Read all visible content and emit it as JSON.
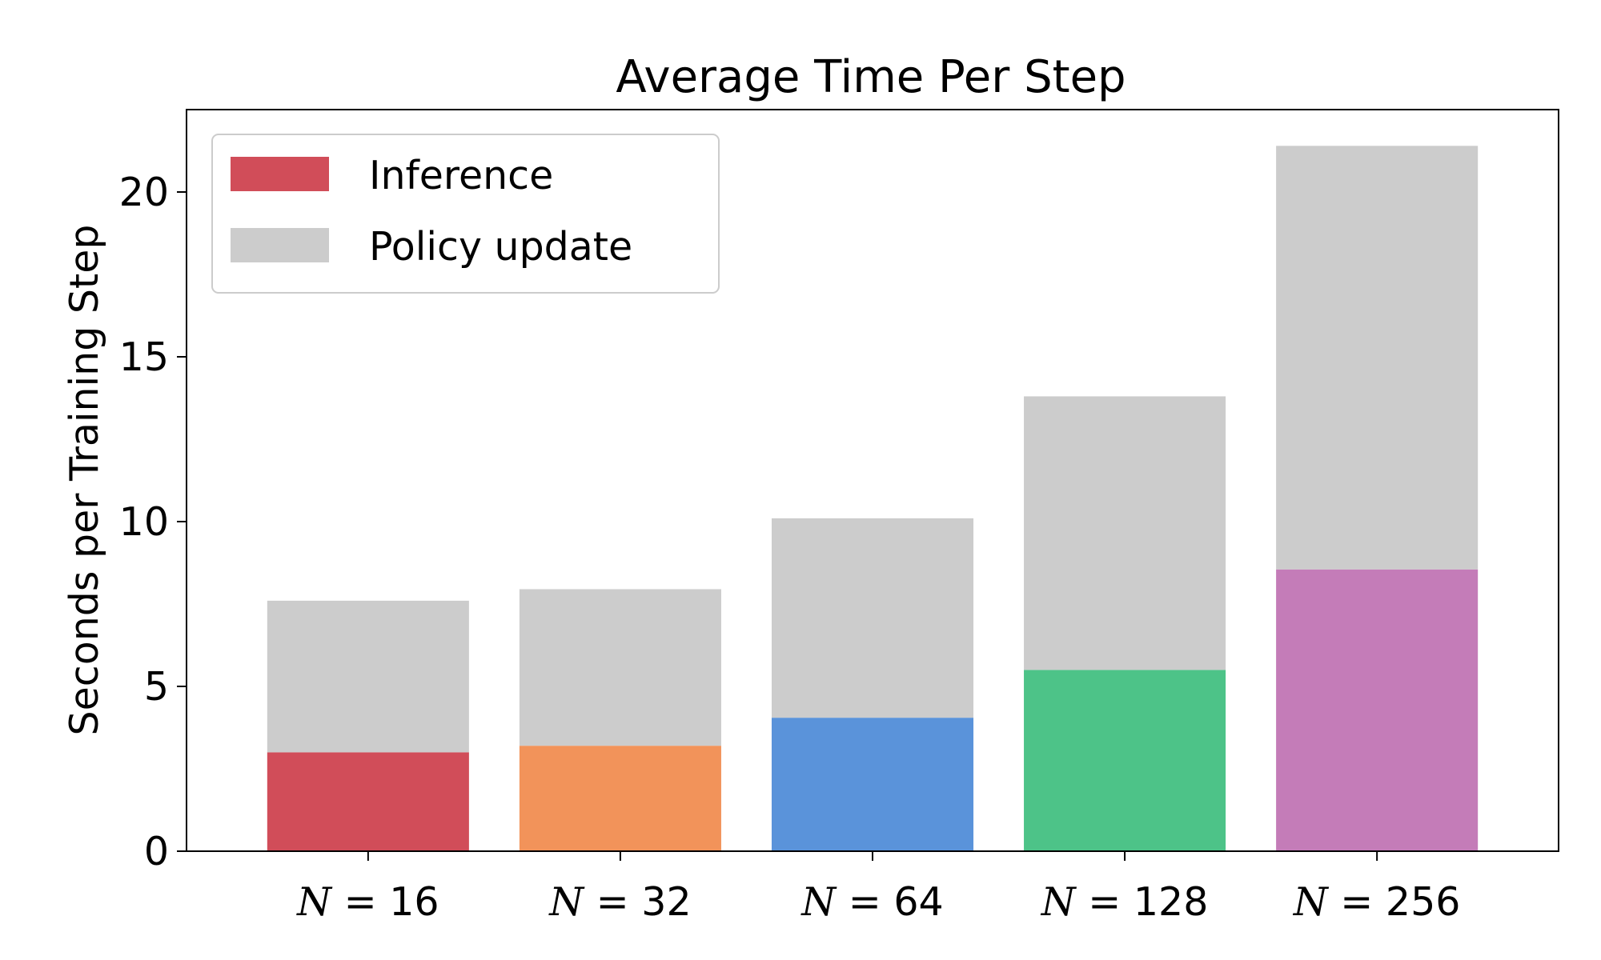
{
  "chart_data": {
    "type": "bar",
    "stacked": true,
    "title": "Average Time Per Step",
    "ylabel": "Seconds per Training Step",
    "xlabel": "",
    "categories": [
      "N = 16",
      "N = 32",
      "N = 64",
      "N = 128",
      "N = 256"
    ],
    "category_parts": [
      {
        "var": "N",
        "op": "=",
        "num": "16"
      },
      {
        "var": "N",
        "op": "=",
        "num": "32"
      },
      {
        "var": "N",
        "op": "=",
        "num": "64"
      },
      {
        "var": "N",
        "op": "=",
        "num": "128"
      },
      {
        "var": "N",
        "op": "=",
        "num": "256"
      }
    ],
    "ylim": [
      0,
      22.5
    ],
    "yticks": [
      0,
      5,
      10,
      15,
      20
    ],
    "ytick_labels": [
      "0",
      "5",
      "10",
      "15",
      "20"
    ],
    "grid": false,
    "legend_position": "top-left",
    "series": [
      {
        "name": "Inference",
        "values": [
          3.0,
          3.2,
          4.05,
          5.5,
          8.55
        ],
        "colors": [
          "#d14d59",
          "#f2935a",
          "#5a93da",
          "#4dc388",
          "#c47cb8"
        ],
        "legend_color": "#d14d59"
      },
      {
        "name": "Policy update",
        "values": [
          4.6,
          4.75,
          6.05,
          8.3,
          12.85
        ],
        "colors": [
          "#cccccc",
          "#cccccc",
          "#cccccc",
          "#cccccc",
          "#cccccc"
        ],
        "legend_color": "#cccccc"
      }
    ]
  }
}
